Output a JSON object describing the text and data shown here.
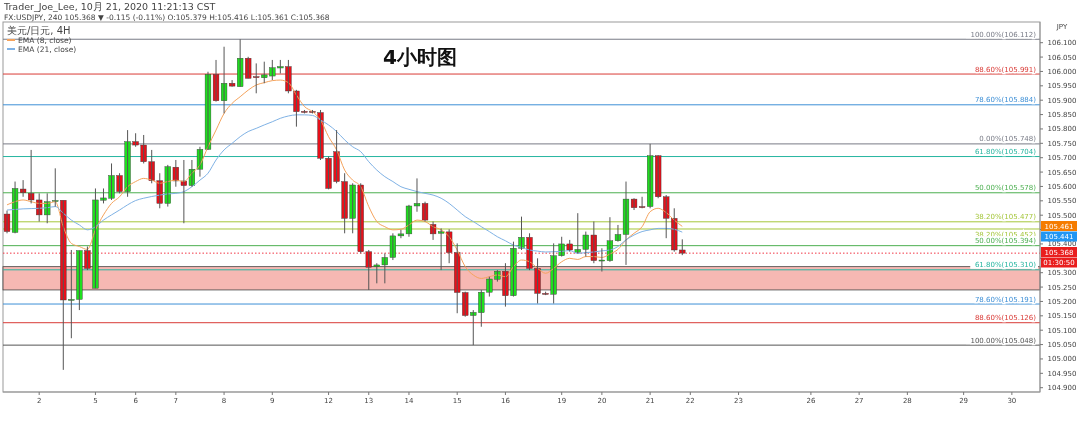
{
  "chart_data": {
    "type": "candlestick",
    "title": "4小时图",
    "ylabel": "JPY",
    "annotations": [
      "Trader_Joe_Lee, 10月 21, 2020 11:21:13 CST",
      "FX:USDJPY, 240 105.368 ▼ -0.115 (-0.11%) O:105.379 H:105.416 L:105.361 C:105.368",
      "美元/日元, 4H",
      "105.461",
      "105.441",
      "105.368",
      "01:30:50"
    ],
    "categories": [
      null,
      null,
      null,
      null,
      "2",
      null,
      null,
      null,
      null,
      null,
      null,
      "5",
      null,
      null,
      null,
      null,
      "6",
      null,
      null,
      null,
      null,
      "7",
      null,
      null,
      null,
      null,
      null,
      "8",
      null,
      null,
      null,
      null,
      null,
      "9",
      null,
      null,
      null,
      null,
      null,
      null,
      "12",
      null,
      null,
      null,
      null,
      "13",
      null,
      null,
      null,
      null,
      "14",
      null,
      null,
      null,
      null,
      null,
      "15",
      null,
      null,
      null,
      null,
      null,
      "16",
      null,
      null,
      null,
      null,
      null,
      null,
      "19",
      null,
      null,
      null,
      null,
      "20",
      null,
      null,
      null,
      null,
      null,
      "21",
      null,
      null,
      null,
      null,
      "22",
      null,
      null,
      null,
      null,
      null,
      "23",
      null,
      null,
      null,
      null,
      null,
      null,
      null,
      null,
      "26",
      null,
      null,
      null,
      null,
      null,
      "27",
      null,
      null,
      null,
      null,
      null,
      "28",
      null,
      null,
      null,
      null,
      null,
      null,
      "29",
      null,
      null,
      null,
      null,
      null,
      "30",
      null,
      null,
      null
    ],
    "ohlc": [
      [
        105.504,
        105.516,
        105.437,
        105.443
      ],
      [
        105.44,
        105.617,
        105.437,
        105.593
      ],
      [
        105.591,
        105.622,
        105.564,
        105.578
      ],
      [
        105.576,
        105.727,
        105.541,
        105.553
      ],
      [
        105.553,
        105.576,
        105.478,
        105.501
      ],
      [
        105.501,
        105.576,
        105.472,
        105.547
      ],
      [
        105.548,
        105.663,
        105.53,
        105.551
      ],
      [
        105.552,
        105.552,
        104.962,
        105.205
      ],
      [
        105.205,
        105.379,
        105.072,
        105.207
      ],
      [
        105.207,
        105.377,
        105.17,
        105.377
      ],
      [
        105.377,
        105.391,
        105.309,
        105.315
      ],
      [
        105.246,
        105.593,
        105.246,
        105.553
      ],
      [
        105.552,
        105.593,
        105.541,
        105.56
      ],
      [
        105.559,
        105.68,
        105.553,
        105.638
      ],
      [
        105.638,
        105.646,
        105.576,
        105.582
      ],
      [
        105.582,
        105.796,
        105.564,
        105.756
      ],
      [
        105.756,
        105.785,
        105.738,
        105.744
      ],
      [
        105.744,
        105.779,
        105.68,
        105.686
      ],
      [
        105.686,
        105.727,
        105.611,
        105.62
      ],
      [
        105.62,
        105.646,
        105.524,
        105.541
      ],
      [
        105.541,
        105.675,
        105.53,
        105.669
      ],
      [
        105.667,
        105.692,
        105.599,
        105.619
      ],
      [
        105.619,
        105.692,
        105.472,
        105.603
      ],
      [
        105.603,
        105.692,
        105.599,
        105.66
      ],
      [
        105.66,
        105.738,
        105.634,
        105.729
      ],
      [
        105.729,
        105.999,
        105.727,
        105.99
      ],
      [
        105.99,
        106.04,
        105.895,
        105.898
      ],
      [
        105.898,
        106.086,
        105.854,
        105.959
      ],
      [
        105.959,
        105.97,
        105.947,
        105.949
      ],
      [
        105.947,
        106.112,
        105.947,
        106.046
      ],
      [
        106.046,
        106.051,
        105.976,
        105.976
      ],
      [
        105.982,
        106.028,
        105.924,
        105.981
      ],
      [
        105.978,
        106.034,
        105.959,
        105.988
      ],
      [
        105.984,
        106.04,
        105.97,
        106.013
      ],
      [
        106.012,
        106.04,
        105.993,
        106.017
      ],
      [
        106.017,
        106.04,
        105.924,
        105.932
      ],
      [
        105.932,
        105.936,
        105.808,
        105.86
      ],
      [
        105.861,
        105.866,
        105.854,
        105.86
      ],
      [
        105.861,
        105.866,
        105.854,
        105.857
      ],
      [
        105.857,
        105.866,
        105.692,
        105.698
      ],
      [
        105.698,
        105.704,
        105.59,
        105.593
      ],
      [
        105.721,
        105.796,
        105.611,
        105.617
      ],
      [
        105.617,
        105.646,
        105.437,
        105.489
      ],
      [
        105.489,
        105.611,
        105.437,
        105.605
      ],
      [
        105.605,
        105.611,
        105.367,
        105.373
      ],
      [
        105.373,
        105.379,
        105.24,
        105.319
      ],
      [
        105.321,
        105.333,
        105.263,
        105.327
      ],
      [
        105.327,
        105.367,
        105.263,
        105.353
      ],
      [
        105.353,
        105.437,
        105.344,
        105.428
      ],
      [
        105.428,
        105.449,
        105.42,
        105.435
      ],
      [
        105.435,
        105.536,
        105.425,
        105.532
      ],
      [
        105.532,
        105.628,
        105.512,
        105.541
      ],
      [
        105.541,
        105.547,
        105.478,
        105.483
      ],
      [
        105.468,
        105.478,
        105.414,
        105.435
      ],
      [
        105.437,
        105.454,
        105.309,
        105.443
      ],
      [
        105.442,
        105.451,
        105.333,
        105.37
      ],
      [
        105.37,
        105.402,
        105.159,
        105.231
      ],
      [
        105.231,
        105.234,
        105.147,
        105.151
      ],
      [
        105.151,
        105.17,
        105.048,
        105.162
      ],
      [
        105.161,
        105.24,
        105.112,
        105.232
      ],
      [
        105.232,
        105.286,
        105.217,
        105.278
      ],
      [
        105.277,
        105.309,
        105.269,
        105.305
      ],
      [
        105.305,
        105.333,
        105.182,
        105.22
      ],
      [
        105.22,
        105.408,
        105.217,
        105.385
      ],
      [
        105.385,
        105.495,
        105.379,
        105.423
      ],
      [
        105.423,
        105.437,
        105.309,
        105.315
      ],
      [
        105.315,
        105.35,
        105.193,
        105.228
      ],
      [
        105.228,
        105.234,
        105.222,
        105.226
      ],
      [
        105.225,
        105.402,
        105.193,
        105.359
      ],
      [
        105.359,
        105.425,
        105.356,
        105.4
      ],
      [
        105.4,
        105.414,
        105.373,
        105.379
      ],
      [
        105.371,
        105.507,
        105.367,
        105.381
      ],
      [
        105.381,
        105.443,
        105.356,
        105.431
      ],
      [
        105.431,
        105.478,
        105.333,
        105.342
      ],
      [
        105.342,
        105.385,
        105.304,
        105.344
      ],
      [
        105.342,
        105.493,
        105.338,
        105.411
      ],
      [
        105.411,
        105.466,
        105.408,
        105.433
      ],
      [
        105.433,
        105.617,
        105.327,
        105.556
      ],
      [
        105.556,
        105.559,
        105.518,
        105.526
      ],
      [
        105.53,
        105.564,
        105.524,
        105.529
      ],
      [
        105.53,
        105.748,
        105.524,
        105.707
      ],
      [
        105.707,
        105.709,
        105.559,
        105.564
      ],
      [
        105.564,
        105.57,
        105.42,
        105.489
      ],
      [
        105.489,
        105.524,
        105.373,
        105.379
      ],
      [
        105.379,
        105.416,
        105.361,
        105.368
      ],
      null,
      null,
      null,
      null,
      null,
      null,
      null,
      null,
      null,
      null,
      null,
      null,
      null,
      null,
      null,
      null,
      null,
      null,
      null,
      null,
      null,
      null,
      null,
      null,
      null,
      null,
      null,
      null,
      null,
      null,
      null,
      null,
      null,
      null,
      null,
      null,
      null,
      null,
      null,
      null,
      null,
      null,
      null,
      null
    ],
    "series": [
      {
        "type": "line",
        "name": "EMA (8, close)",
        "color": "#f5a35c",
        "values": [
          105.536,
          105.547,
          105.553,
          105.547,
          105.541,
          105.541,
          105.547,
          105.46,
          105.402,
          105.391,
          105.381,
          105.449,
          105.501,
          105.541,
          105.564,
          105.599,
          105.617,
          105.628,
          105.622,
          105.611,
          105.617,
          105.622,
          105.617,
          105.646,
          105.675,
          105.738,
          105.796,
          105.854,
          105.889,
          105.912,
          105.935,
          105.953,
          105.961,
          105.968,
          105.97,
          105.961,
          105.918,
          105.878,
          105.86,
          105.831,
          105.773,
          105.727,
          105.657,
          105.622,
          105.599,
          105.53,
          105.478,
          105.46,
          105.449,
          105.451,
          105.466,
          105.483,
          105.478,
          105.46,
          105.449,
          105.425,
          105.379,
          105.321,
          105.292,
          105.28,
          105.286,
          105.292,
          105.286,
          105.321,
          105.344,
          105.338,
          105.315,
          105.298,
          105.315,
          105.338,
          105.35,
          105.346,
          105.356,
          105.356,
          105.353,
          105.365,
          105.381,
          105.414,
          105.437,
          105.46,
          105.512,
          105.524,
          105.509,
          105.483,
          105.461,
          null,
          null,
          null,
          null,
          null,
          null,
          null,
          null,
          null,
          null,
          null,
          null,
          null,
          null,
          null,
          null,
          null,
          null,
          null,
          null,
          null,
          null,
          null,
          null,
          null,
          null,
          null,
          null,
          null,
          null,
          null,
          null,
          null,
          null,
          null,
          null,
          null,
          null,
          null,
          null,
          null,
          null,
          null,
          null
        ]
      },
      {
        "type": "line",
        "name": "EMA (21, close)",
        "color": "#7fb2e5",
        "values": [
          105.518,
          105.52,
          105.522,
          105.523,
          105.524,
          105.526,
          105.53,
          105.507,
          105.483,
          105.466,
          105.449,
          105.46,
          105.483,
          105.501,
          105.518,
          105.536,
          105.551,
          105.559,
          105.565,
          105.57,
          105.574,
          105.576,
          105.582,
          105.599,
          105.622,
          105.646,
          105.692,
          105.727,
          105.75,
          105.773,
          105.791,
          105.802,
          105.814,
          105.825,
          105.837,
          105.845,
          105.849,
          105.849,
          105.847,
          105.831,
          105.814,
          105.791,
          105.762,
          105.738,
          105.721,
          105.686,
          105.657,
          105.634,
          105.617,
          105.599,
          105.59,
          105.582,
          105.576,
          105.57,
          105.559,
          105.541,
          105.518,
          105.495,
          105.478,
          105.46,
          105.443,
          105.425,
          105.411,
          105.396,
          105.388,
          105.379,
          105.375,
          105.372,
          105.373,
          105.374,
          105.377,
          105.367,
          105.37,
          105.372,
          105.376,
          105.379,
          105.391,
          105.414,
          105.431,
          105.443,
          105.449,
          105.454,
          105.454,
          105.451,
          105.441,
          null,
          null,
          null,
          null,
          null,
          null,
          null,
          null,
          null,
          null,
          null,
          null,
          null,
          null,
          null,
          null,
          null,
          null,
          null,
          null,
          null,
          null,
          null,
          null,
          null,
          null,
          null,
          null,
          null,
          null,
          null,
          null,
          null,
          null,
          null,
          null,
          null,
          null,
          null,
          null,
          null,
          null,
          null,
          null
        ]
      }
    ],
    "ylim": [
      104.885,
      106.172
    ],
    "yticks": [
      {
        "value": 104.9,
        "label": "104.900"
      },
      {
        "value": 104.95,
        "label": "104.950"
      },
      {
        "value": 105.0,
        "label": "105.000"
      },
      {
        "value": 105.05,
        "label": "105.050"
      },
      {
        "value": 105.1,
        "label": "105.100"
      },
      {
        "value": 105.15,
        "label": "105.150"
      },
      {
        "value": 105.2,
        "label": "105.200"
      },
      {
        "value": 105.25,
        "label": "105.250"
      },
      {
        "value": 105.3,
        "label": "105.300"
      },
      {
        "value": 105.35,
        "label": null
      },
      {
        "value": 105.4,
        "label": "105.400"
      },
      {
        "value": 105.45,
        "label": null
      },
      {
        "value": 105.5,
        "label": "105.500"
      },
      {
        "value": 105.55,
        "label": "105.550"
      },
      {
        "value": 105.6,
        "label": "105.600"
      },
      {
        "value": 105.65,
        "label": "105.650"
      },
      {
        "value": 105.7,
        "label": "105.700"
      },
      {
        "value": 105.75,
        "label": "105.750"
      },
      {
        "value": 105.8,
        "label": "105.800"
      },
      {
        "value": 105.85,
        "label": "105.850"
      },
      {
        "value": 105.9,
        "label": "105.900"
      },
      {
        "value": 105.95,
        "label": "105.950"
      },
      {
        "value": 106.0,
        "label": "106.000"
      },
      {
        "value": 106.05,
        "label": "106.050"
      },
      {
        "value": 106.1,
        "label": "106.100"
      }
    ],
    "ref_lines": [
      {
        "axis": "y",
        "value": 106.112,
        "label": "100.00%(106.112)",
        "color": "#787b86"
      },
      {
        "axis": "y",
        "value": 105.991,
        "label": "88.60%(105.991)",
        "color": "#d93a36"
      },
      {
        "axis": "y",
        "value": 105.884,
        "label": "78.60%(105.884)",
        "color": "#3d8fd6"
      },
      {
        "axis": "y",
        "value": 105.748,
        "label": "0.00%(105.748)",
        "color": "#787b86"
      },
      {
        "axis": "y",
        "value": 105.704,
        "label": "61.80%(105.704)",
        "color": "#26b5a0"
      },
      {
        "axis": "y",
        "value": 105.578,
        "label": "50.00%(105.578)",
        "color": "#4caf50"
      },
      {
        "axis": "y",
        "value": 105.477,
        "label": "38.20%(105.477)",
        "color": "#a5c63b"
      },
      {
        "axis": "y",
        "value": 105.452,
        "label": "38.20%(105.452)",
        "color": "#a5c63b"
      },
      {
        "axis": "y",
        "value": 105.394,
        "label": "50.00%(105.394)",
        "color": "#4caf50"
      },
      {
        "axis": "y",
        "value": 105.368,
        "color": "#f23645",
        "line_style": "dotted"
      },
      {
        "axis": "y",
        "value": 105.31,
        "label": "61.80%(105.310)",
        "color": "#26b5a0"
      },
      {
        "axis": "y",
        "value": 105.191,
        "label": "78.60%(105.191)",
        "color": "#3d8fd6"
      },
      {
        "axis": "y",
        "value": 105.126,
        "label": "88.60%(105.126)",
        "color": "#d93a36"
      },
      {
        "axis": "y",
        "value": 105.048,
        "label": "100.00%(105.048)",
        "color": "#555555"
      }
    ],
    "bands": [
      {
        "axis": "y",
        "from": 105.24,
        "to": 105.321,
        "color": "#f4aca6"
      }
    ],
    "legend": "top left"
  }
}
